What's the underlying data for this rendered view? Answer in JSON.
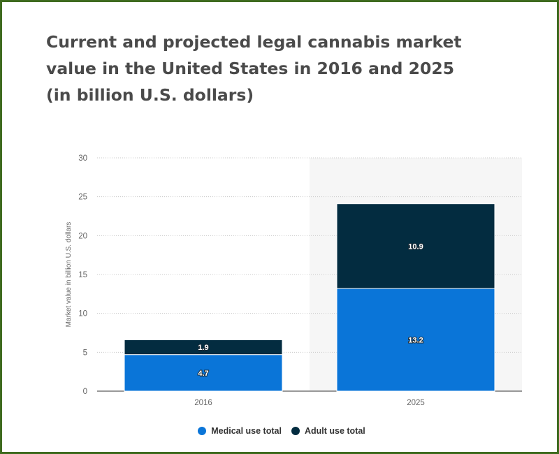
{
  "title": "Current and projected legal cannabis market\nvalue in the United States in 2016 and 2025\n(in billion U.S. dollars)",
  "colors": {
    "medical": "#0a75d8",
    "adult": "#032c40",
    "frame": "#3f6b1f",
    "highlight_band": "#f6f6f6"
  },
  "legend": [
    {
      "name": "Medical use total",
      "color": "#0a75d8"
    },
    {
      "name": "Adult use total",
      "color": "#032c40"
    }
  ],
  "chart_data": {
    "type": "bar",
    "stacked": true,
    "categories": [
      "2016",
      "2025"
    ],
    "series": [
      {
        "name": "Medical use total",
        "values": [
          4.7,
          13.2
        ],
        "labels": [
          "4.7",
          "13.2"
        ]
      },
      {
        "name": "Adult use total",
        "values": [
          1.9,
          10.9
        ],
        "labels": [
          "1.9",
          "10.9"
        ]
      }
    ],
    "ylabel": "Market value in billion U.S. dollars",
    "ylim": [
      0,
      30
    ],
    "yticks": [
      "0",
      "5",
      "10",
      "15",
      "20",
      "25",
      "30"
    ],
    "grid": true,
    "legend_position": "bottom-center"
  }
}
